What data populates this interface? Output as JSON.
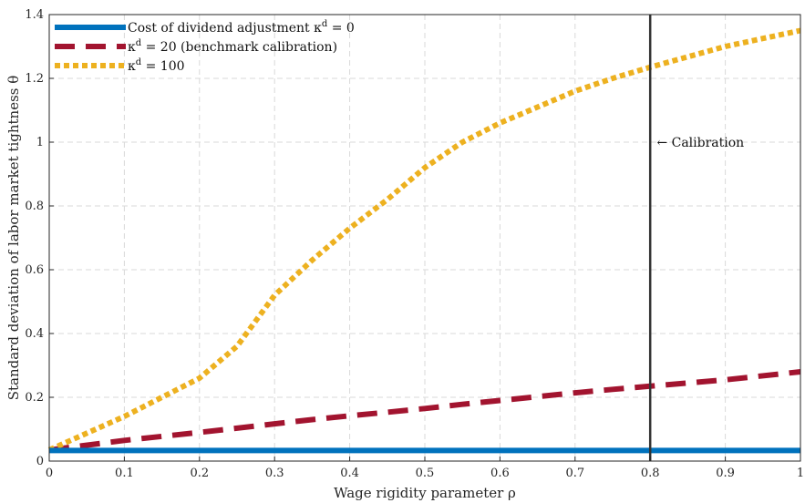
{
  "chart_data": {
    "type": "line",
    "title": "",
    "xlabel": "Wage rigidity parameter ρ",
    "ylabel": "Standard deviation of labor market tightness θ",
    "xlim": [
      0,
      1
    ],
    "ylim": [
      0,
      1.4
    ],
    "xticks": [
      "0",
      "0.1",
      "0.2",
      "0.3",
      "0.4",
      "0.5",
      "0.6",
      "0.7",
      "0.8",
      "0.9",
      "1"
    ],
    "yticks": [
      "0",
      "0.2",
      "0.4",
      "0.6",
      "0.8",
      "1",
      "1.2",
      "1.4"
    ],
    "grid": true,
    "legend_position": "top-left",
    "x": [
      0,
      0.1,
      0.2,
      0.25,
      0.3,
      0.35,
      0.4,
      0.45,
      0.5,
      0.55,
      0.6,
      0.65,
      0.7,
      0.75,
      0.8,
      0.9,
      1.0
    ],
    "series": [
      {
        "name": "Cost of dividend adjustment κ^d = 0",
        "label_prefix": "Cost of dividend adjustment κ",
        "label_sup": "d",
        "label_suffix": " = 0",
        "color": "#0072BD",
        "style": "solid",
        "values": [
          0.033,
          0.033,
          0.033,
          0.033,
          0.033,
          0.033,
          0.033,
          0.033,
          0.033,
          0.033,
          0.033,
          0.033,
          0.033,
          0.033,
          0.033,
          0.033,
          0.033
        ]
      },
      {
        "name": "κ^d = 20 (benchmark calibration)",
        "label_prefix": "κ",
        "label_sup": "d",
        "label_suffix": " = 20 (benchmark calibration)",
        "color": "#A2142F",
        "style": "dashed",
        "values": [
          0.035,
          0.065,
          0.09,
          0.103,
          0.117,
          0.13,
          0.142,
          0.153,
          0.165,
          0.178,
          0.19,
          0.202,
          0.214,
          0.225,
          0.235,
          0.255,
          0.28
        ]
      },
      {
        "name": "κ^d = 100",
        "label_prefix": "κ",
        "label_sup": "d",
        "label_suffix": " = 100",
        "color": "#EDB120",
        "style": "dotted",
        "values": [
          0.035,
          0.14,
          0.26,
          0.36,
          0.52,
          0.63,
          0.73,
          0.82,
          0.92,
          1.0,
          1.06,
          1.11,
          1.16,
          1.2,
          1.235,
          1.3,
          1.35
        ]
      }
    ],
    "annotations": [
      {
        "type": "vline",
        "x": 0.8,
        "color": "#333333"
      },
      {
        "type": "text",
        "text": "← Calibration",
        "x": 0.81,
        "y": 1.0
      }
    ]
  }
}
